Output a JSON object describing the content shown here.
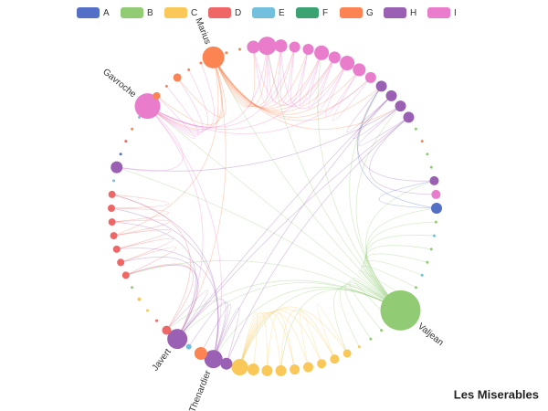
{
  "chart_data": {
    "type": "graph",
    "title": "Les Miserables",
    "categories": [
      {
        "name": "A",
        "color": "#5470c6"
      },
      {
        "name": "B",
        "color": "#91cc75"
      },
      {
        "name": "C",
        "color": "#fac858"
      },
      {
        "name": "D",
        "color": "#ee6666"
      },
      {
        "name": "E",
        "color": "#73c0de"
      },
      {
        "name": "F",
        "color": "#3ba272"
      },
      {
        "name": "G",
        "color": "#fc8452"
      },
      {
        "name": "H",
        "color": "#9a60b4"
      },
      {
        "name": "I",
        "color": "#ea7ccc"
      }
    ],
    "nodes": [
      {
        "category": 0,
        "size": 12
      },
      {
        "category": 1,
        "size": 3
      },
      {
        "category": 4,
        "size": 3
      },
      {
        "category": 1,
        "size": 3
      },
      {
        "category": 1,
        "size": 3
      },
      {
        "category": 4,
        "size": 3
      },
      {
        "category": 1,
        "size": 3
      },
      {
        "category": 1,
        "size": 3
      },
      {
        "category": 1,
        "size": 44,
        "label": "Valjean"
      },
      {
        "category": 1,
        "size": 3
      },
      {
        "category": 1,
        "size": 3
      },
      {
        "category": 1,
        "size": 3
      },
      {
        "category": 2,
        "size": 3
      },
      {
        "category": 2,
        "size": 9
      },
      {
        "category": 2,
        "size": 10
      },
      {
        "category": 2,
        "size": 10
      },
      {
        "category": 2,
        "size": 11
      },
      {
        "category": 2,
        "size": 11
      },
      {
        "category": 2,
        "size": 12
      },
      {
        "category": 2,
        "size": 12
      },
      {
        "category": 2,
        "size": 13
      },
      {
        "category": 2,
        "size": 18
      },
      {
        "category": 7,
        "size": 13
      },
      {
        "category": 7,
        "size": 20,
        "label": "Thenardier"
      },
      {
        "category": 6,
        "size": 14
      },
      {
        "category": 4,
        "size": 6
      },
      {
        "category": 7,
        "size": 22,
        "label": "Javert"
      },
      {
        "category": 3,
        "size": 10
      },
      {
        "category": 3,
        "size": 3
      },
      {
        "category": 2,
        "size": 3
      },
      {
        "category": 2,
        "size": 4
      },
      {
        "category": 1,
        "size": 3
      },
      {
        "category": 3,
        "size": 8
      },
      {
        "category": 3,
        "size": 8
      },
      {
        "category": 3,
        "size": 8
      },
      {
        "category": 3,
        "size": 8
      },
      {
        "category": 3,
        "size": 8
      },
      {
        "category": 3,
        "size": 8
      },
      {
        "category": 3,
        "size": 8
      },
      {
        "category": 4,
        "size": 3
      },
      {
        "category": 7,
        "size": 13
      },
      {
        "category": 0,
        "size": 3
      },
      {
        "category": 3,
        "size": 3
      },
      {
        "category": 6,
        "size": 3
      },
      {
        "category": 4,
        "size": 3
      },
      {
        "category": 8,
        "size": 28,
        "label": "Gavroche"
      },
      {
        "category": 6,
        "size": 8
      },
      {
        "category": 6,
        "size": 3
      },
      {
        "category": 6,
        "size": 9
      },
      {
        "category": 6,
        "size": 3
      },
      {
        "category": 6,
        "size": 3
      },
      {
        "category": 6,
        "size": 24,
        "label": "Marius"
      },
      {
        "category": 6,
        "size": 3
      },
      {
        "category": 6,
        "size": 3
      },
      {
        "category": 8,
        "size": 14
      },
      {
        "category": 8,
        "size": 20
      },
      {
        "category": 8,
        "size": 14
      },
      {
        "category": 8,
        "size": 12
      },
      {
        "category": 8,
        "size": 12
      },
      {
        "category": 8,
        "size": 16
      },
      {
        "category": 8,
        "size": 13
      },
      {
        "category": 8,
        "size": 16
      },
      {
        "category": 8,
        "size": 14
      },
      {
        "category": 8,
        "size": 12
      },
      {
        "category": 7,
        "size": 12
      },
      {
        "category": 7,
        "size": 12
      },
      {
        "category": 7,
        "size": 12
      },
      {
        "category": 7,
        "size": 12
      },
      {
        "category": 1,
        "size": 3
      },
      {
        "category": 6,
        "size": 3
      },
      {
        "category": 1,
        "size": 3
      },
      {
        "category": 1,
        "size": 3
      },
      {
        "category": 7,
        "size": 10
      },
      {
        "category": 8,
        "size": 10
      }
    ],
    "links": [
      [
        8,
        0
      ],
      [
        8,
        1
      ],
      [
        8,
        2
      ],
      [
        8,
        3
      ],
      [
        8,
        4
      ],
      [
        8,
        5
      ],
      [
        8,
        6
      ],
      [
        8,
        7
      ],
      [
        8,
        9
      ],
      [
        8,
        10
      ],
      [
        8,
        11
      ],
      [
        8,
        12
      ],
      [
        8,
        13
      ],
      [
        8,
        18
      ],
      [
        8,
        21
      ],
      [
        8,
        23
      ],
      [
        8,
        26
      ],
      [
        8,
        27
      ],
      [
        8,
        32
      ],
      [
        8,
        40
      ],
      [
        8,
        45
      ],
      [
        8,
        51
      ],
      [
        8,
        55
      ],
      [
        8,
        59
      ],
      [
        8,
        64
      ],
      [
        8,
        66
      ],
      [
        8,
        72
      ],
      [
        13,
        21
      ],
      [
        14,
        21
      ],
      [
        15,
        21
      ],
      [
        16,
        21
      ],
      [
        17,
        21
      ],
      [
        18,
        21
      ],
      [
        19,
        21
      ],
      [
        20,
        21
      ],
      [
        13,
        14
      ],
      [
        15,
        16
      ],
      [
        17,
        19
      ],
      [
        14,
        18
      ],
      [
        51,
        54
      ],
      [
        51,
        55
      ],
      [
        51,
        56
      ],
      [
        51,
        57
      ],
      [
        51,
        58
      ],
      [
        51,
        59
      ],
      [
        51,
        60
      ],
      [
        51,
        61
      ],
      [
        51,
        62
      ],
      [
        51,
        63
      ],
      [
        51,
        45
      ],
      [
        51,
        46
      ],
      [
        51,
        48
      ],
      [
        51,
        26
      ],
      [
        51,
        35
      ],
      [
        51,
        64
      ],
      [
        51,
        66
      ],
      [
        45,
        46
      ],
      [
        45,
        47
      ],
      [
        45,
        48
      ],
      [
        45,
        49
      ],
      [
        45,
        50
      ],
      [
        45,
        55
      ],
      [
        45,
        57
      ],
      [
        45,
        60
      ],
      [
        45,
        23
      ],
      [
        45,
        26
      ],
      [
        45,
        40
      ],
      [
        45,
        63
      ],
      [
        54,
        55
      ],
      [
        55,
        56
      ],
      [
        56,
        57
      ],
      [
        57,
        58
      ],
      [
        58,
        59
      ],
      [
        59,
        60
      ],
      [
        60,
        61
      ],
      [
        61,
        62
      ],
      [
        62,
        63
      ],
      [
        55,
        60
      ],
      [
        56,
        61
      ],
      [
        54,
        59
      ],
      [
        26,
        23
      ],
      [
        26,
        27
      ],
      [
        26,
        32
      ],
      [
        26,
        33
      ],
      [
        26,
        36
      ],
      [
        26,
        65
      ],
      [
        26,
        67
      ],
      [
        23,
        22
      ],
      [
        23,
        24
      ],
      [
        23,
        25
      ],
      [
        23,
        34
      ],
      [
        23,
        37
      ],
      [
        23,
        38
      ],
      [
        23,
        65
      ],
      [
        27,
        32
      ],
      [
        32,
        33
      ],
      [
        33,
        34
      ],
      [
        34,
        35
      ],
      [
        35,
        36
      ],
      [
        36,
        37
      ],
      [
        37,
        38
      ],
      [
        27,
        38
      ],
      [
        64,
        65
      ],
      [
        65,
        66
      ],
      [
        66,
        67
      ],
      [
        64,
        72
      ],
      [
        67,
        73
      ],
      [
        0,
        72
      ],
      [
        0,
        64
      ],
      [
        40,
        66
      ],
      [
        22,
        67
      ]
    ]
  }
}
